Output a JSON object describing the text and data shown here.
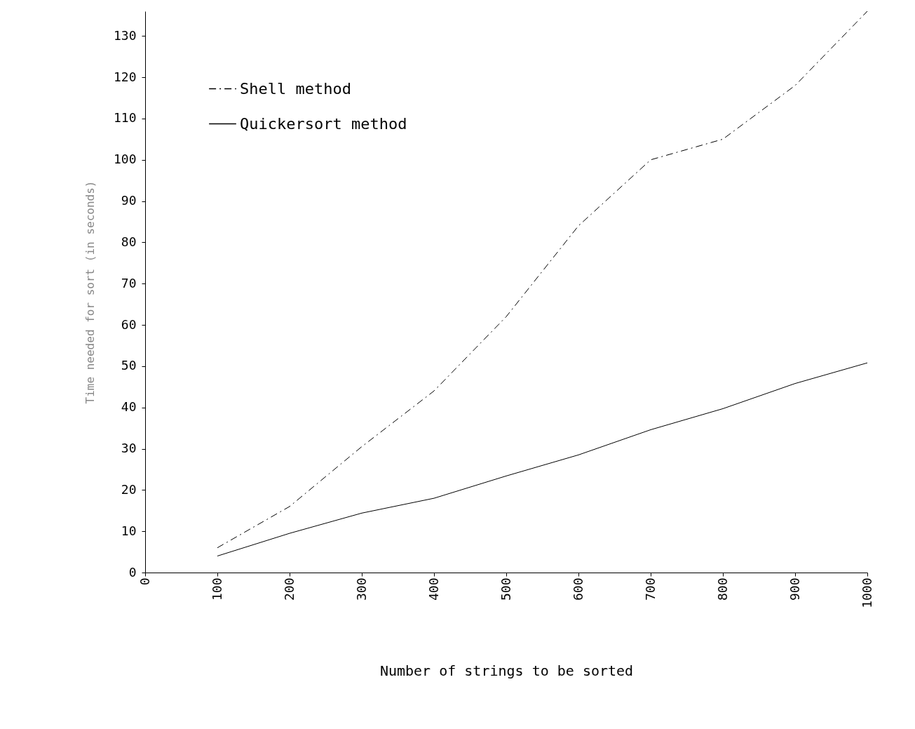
{
  "chart_data": {
    "type": "line",
    "xlabel": "Number of strings to be sorted",
    "ylabel": "Time needed for sort (in seconds)",
    "x": [
      100,
      200,
      300,
      400,
      500,
      600,
      700,
      800,
      900,
      1000
    ],
    "series": [
      {
        "name": "Shell method",
        "color": "#000000",
        "line_style": "dashed",
        "values": [
          6,
          16,
          30.5,
          44,
          62,
          84,
          100,
          105,
          118,
          136
        ]
      },
      {
        "name": "Quickersort method",
        "color": "#000000",
        "line_style": "solid",
        "values": [
          4,
          9.5,
          14.4,
          18,
          23.4,
          28.5,
          34.6,
          39.7,
          45.8,
          50.8
        ]
      }
    ],
    "xlim": [
      0,
      1000
    ],
    "xticks": [
      0,
      100,
      200,
      300,
      400,
      500,
      600,
      700,
      800,
      900,
      1000
    ],
    "ylim": [
      0,
      136
    ],
    "yticks": [
      0,
      10,
      20,
      30,
      40,
      50,
      60,
      70,
      80,
      90,
      100,
      110,
      120,
      130
    ],
    "grid": false,
    "legend": "top left",
    "marker": "none"
  }
}
